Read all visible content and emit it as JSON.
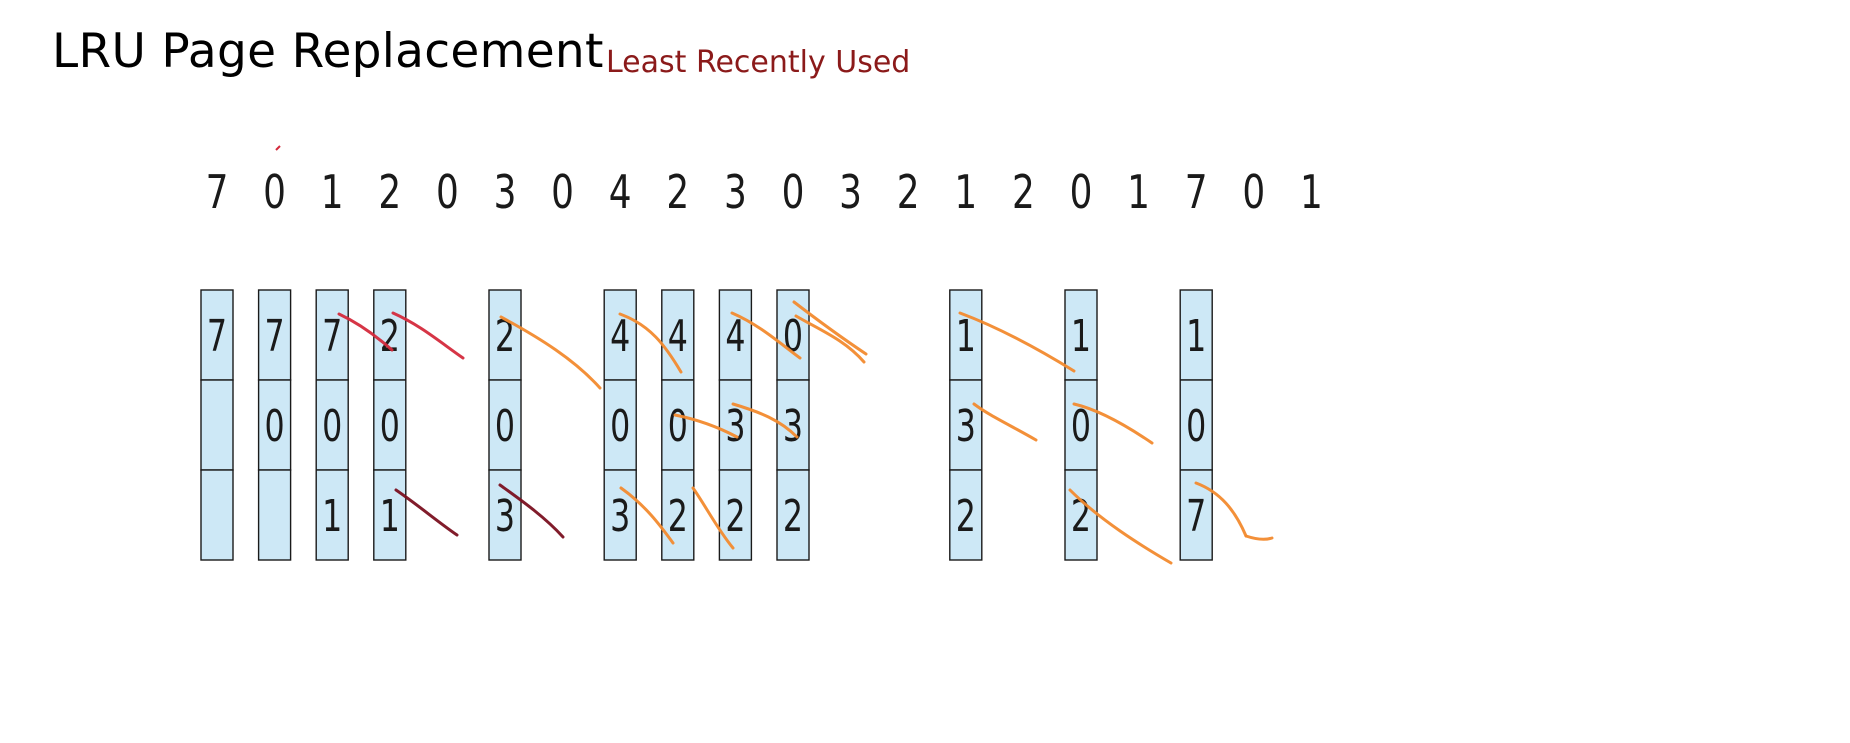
{
  "header": {
    "title": "LRU Page Replacement",
    "subtitle": "Least Recently Used"
  },
  "reference_string": [
    "7",
    "0",
    "1",
    "2",
    "0",
    "3",
    "0",
    "4",
    "2",
    "3",
    "0",
    "3",
    "2",
    "1",
    "2",
    "0",
    "1",
    "7",
    "0",
    "1"
  ],
  "frames": [
    {
      "ref_index": 0,
      "cells": [
        "7",
        "",
        ""
      ]
    },
    {
      "ref_index": 1,
      "cells": [
        "7",
        "0",
        ""
      ]
    },
    {
      "ref_index": 2,
      "cells": [
        "7",
        "0",
        "1"
      ]
    },
    {
      "ref_index": 3,
      "cells": [
        "2",
        "0",
        "1"
      ]
    },
    {
      "ref_index": 5,
      "cells": [
        "2",
        "0",
        "3"
      ]
    },
    {
      "ref_index": 7,
      "cells": [
        "4",
        "0",
        "3"
      ]
    },
    {
      "ref_index": 8,
      "cells": [
        "4",
        "0",
        "2"
      ]
    },
    {
      "ref_index": 9,
      "cells": [
        "4",
        "3",
        "2"
      ]
    },
    {
      "ref_index": 10,
      "cells": [
        "0",
        "3",
        "2"
      ]
    },
    {
      "ref_index": 13,
      "cells": [
        "1",
        "3",
        "2"
      ]
    },
    {
      "ref_index": 15,
      "cells": [
        "1",
        "0",
        "2"
      ]
    },
    {
      "ref_index": 17,
      "cells": [
        "1",
        "0",
        "7"
      ]
    }
  ],
  "colors": {
    "frame_fill": "#cde8f6",
    "frame_border": "#1a1a1a",
    "subtitle": "#8b1a1a",
    "annotation_orange": "#f28a2e",
    "annotation_red": "#d42a3c",
    "annotation_darkred": "#7a1020"
  }
}
